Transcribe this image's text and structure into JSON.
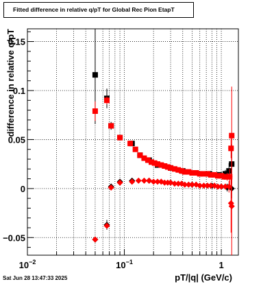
{
  "title": "Fitted difference in relative q/pT for Global Rec Pion EtapT",
  "timestamp": "Sat Jun 28 13:47:33 2025",
  "chart_data": {
    "type": "scatter",
    "title": "Fitted difference in relative q/pT for Global Rec Pion EtapT",
    "xlabel": "pT/|q| (GeV/c)",
    "ylabel": "difference in relative q/pT",
    "xscale": "log",
    "xlim": [
      0.01,
      1.5
    ],
    "ylim": [
      -0.068,
      0.163
    ],
    "grid": true,
    "x_ticks": [
      {
        "value": 0.01,
        "base": "10",
        "exp": "−2"
      },
      {
        "value": 0.1,
        "base": "10",
        "exp": "−1"
      },
      {
        "value": 1,
        "base": "1",
        "exp": ""
      }
    ],
    "y_ticks": [
      {
        "value": -0.05,
        "label": "−0.05"
      },
      {
        "value": 0,
        "label": "0"
      },
      {
        "value": 0.05,
        "label": "0.05"
      },
      {
        "value": 0.1,
        "label": "0.1"
      },
      {
        "value": 0.15,
        "label": "0.15"
      }
    ],
    "series": [
      {
        "color": "#000000",
        "marker": "square",
        "points": [
          [
            0.05,
            0.116,
            0.05
          ],
          [
            0.066,
            0.092,
            0.01
          ],
          [
            0.073,
            0.064,
            0.004
          ],
          [
            0.09,
            0.052,
            0.002
          ],
          [
            0.12,
            0.046,
            0.002
          ],
          [
            0.145,
            0.034,
            0.0015
          ],
          [
            0.18,
            0.029,
            0.001
          ],
          [
            0.22,
            0.024,
            0.001
          ],
          [
            0.3,
            0.021,
            0.001
          ],
          [
            0.4,
            0.018,
            0.001
          ],
          [
            0.55,
            0.016,
            0.001
          ],
          [
            0.75,
            0.015,
            0.001
          ],
          [
            0.95,
            0.014,
            0.002
          ],
          [
            1.1,
            0.015,
            0.004
          ],
          [
            1.2,
            0.018,
            0.008
          ],
          [
            1.28,
            0.025,
            0.02
          ]
        ]
      },
      {
        "color": "#000000",
        "marker": "diamond",
        "points": [
          [
            0.05,
            -0.052,
            0.003
          ],
          [
            0.066,
            -0.037,
            0.005
          ],
          [
            0.073,
            0.002,
            0.003
          ],
          [
            0.09,
            0.007,
            0.002
          ],
          [
            0.12,
            0.008,
            0.001
          ],
          [
            0.18,
            0.008,
            0.001
          ],
          [
            0.3,
            0.006,
            0.001
          ],
          [
            0.5,
            0.004,
            0.001
          ],
          [
            0.8,
            0.003,
            0.001
          ],
          [
            1.0,
            0.002,
            0.002
          ],
          [
            1.15,
            0.001,
            0.004
          ],
          [
            1.28,
            0.0,
            0.01
          ]
        ]
      },
      {
        "color": "#ff0000",
        "marker": "square",
        "points": [
          [
            0.05,
            0.079,
            0.01
          ],
          [
            0.066,
            0.09,
            0.004
          ],
          [
            0.073,
            0.064,
            0.002
          ],
          [
            0.09,
            0.052,
            0.0015
          ],
          [
            0.115,
            0.046,
            0.0012
          ],
          [
            0.13,
            0.04,
            0.001
          ],
          [
            0.145,
            0.034,
            0.001
          ],
          [
            0.16,
            0.031,
            0.001
          ],
          [
            0.175,
            0.029,
            0.001
          ],
          [
            0.19,
            0.027,
            0.001
          ],
          [
            0.205,
            0.026,
            0.001
          ],
          [
            0.22,
            0.025,
            0.001
          ],
          [
            0.24,
            0.024,
            0.001
          ],
          [
            0.26,
            0.023,
            0.001
          ],
          [
            0.28,
            0.022,
            0.001
          ],
          [
            0.3,
            0.021,
            0.001
          ],
          [
            0.33,
            0.02,
            0.001
          ],
          [
            0.36,
            0.019,
            0.001
          ],
          [
            0.39,
            0.018,
            0.001
          ],
          [
            0.42,
            0.017,
            0.001
          ],
          [
            0.46,
            0.017,
            0.001
          ],
          [
            0.5,
            0.016,
            0.001
          ],
          [
            0.55,
            0.016,
            0.001
          ],
          [
            0.6,
            0.015,
            0.001
          ],
          [
            0.66,
            0.015,
            0.001
          ],
          [
            0.72,
            0.015,
            0.001
          ],
          [
            0.78,
            0.014,
            0.001
          ],
          [
            0.85,
            0.014,
            0.001
          ],
          [
            0.92,
            0.013,
            0.001
          ],
          [
            1.0,
            0.013,
            0.002
          ],
          [
            1.08,
            0.012,
            0.003
          ],
          [
            1.15,
            0.012,
            0.004
          ],
          [
            1.22,
            0.012,
            0.008
          ],
          [
            1.26,
            0.041,
            0.01
          ],
          [
            1.28,
            0.054,
            0.05
          ]
        ]
      },
      {
        "color": "#ff0000",
        "marker": "diamond",
        "points": [
          [
            0.05,
            -0.052,
            0.002
          ],
          [
            0.066,
            -0.038,
            0.002
          ],
          [
            0.073,
            0.001,
            0.001
          ],
          [
            0.09,
            0.006,
            0.001
          ],
          [
            0.12,
            0.007,
            0.001
          ],
          [
            0.14,
            0.008,
            0.0008
          ],
          [
            0.16,
            0.008,
            0.0008
          ],
          [
            0.18,
            0.008,
            0.0008
          ],
          [
            0.2,
            0.007,
            0.0008
          ],
          [
            0.22,
            0.007,
            0.0008
          ],
          [
            0.24,
            0.007,
            0.0008
          ],
          [
            0.26,
            0.006,
            0.0008
          ],
          [
            0.28,
            0.006,
            0.0008
          ],
          [
            0.3,
            0.006,
            0.0008
          ],
          [
            0.33,
            0.005,
            0.0008
          ],
          [
            0.36,
            0.005,
            0.0008
          ],
          [
            0.39,
            0.005,
            0.0008
          ],
          [
            0.42,
            0.004,
            0.0008
          ],
          [
            0.46,
            0.004,
            0.0008
          ],
          [
            0.5,
            0.004,
            0.0008
          ],
          [
            0.55,
            0.004,
            0.0008
          ],
          [
            0.6,
            0.003,
            0.0008
          ],
          [
            0.66,
            0.003,
            0.0008
          ],
          [
            0.72,
            0.003,
            0.0008
          ],
          [
            0.78,
            0.003,
            0.0008
          ],
          [
            0.85,
            0.003,
            0.0008
          ],
          [
            0.92,
            0.002,
            0.001
          ],
          [
            1.0,
            0.002,
            0.001
          ],
          [
            1.1,
            0.002,
            0.003
          ],
          [
            1.2,
            0.002,
            0.006
          ],
          [
            1.26,
            -0.015,
            0.03
          ],
          [
            1.28,
            -0.018,
            0.05
          ]
        ]
      }
    ]
  }
}
